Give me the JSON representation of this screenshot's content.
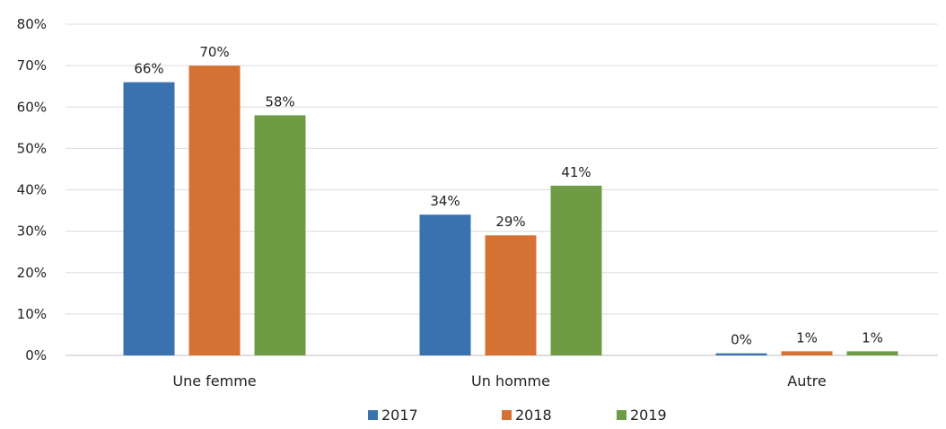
{
  "chart_data": {
    "type": "bar",
    "categories": [
      "Une femme",
      "Un homme",
      "Autre"
    ],
    "series": [
      {
        "name": "2017",
        "values": [
          66,
          34,
          0.5
        ],
        "labels": [
          "66%",
          "34%",
          "0%"
        ],
        "color": "#3a72b0"
      },
      {
        "name": "2018",
        "values": [
          70,
          29,
          1
        ],
        "labels": [
          "70%",
          "29%",
          "1%"
        ],
        "color": "#d57233"
      },
      {
        "name": "2019",
        "values": [
          58,
          41,
          1
        ],
        "labels": [
          "58%",
          "41%",
          "1%"
        ],
        "color": "#6f9b45"
      }
    ],
    "ylim": [
      0,
      80
    ],
    "yticks": [
      "0%",
      "10%",
      "20%",
      "30%",
      "40%",
      "50%",
      "60%",
      "70%",
      "80%"
    ],
    "grid": true,
    "legend_position": "bottom"
  }
}
